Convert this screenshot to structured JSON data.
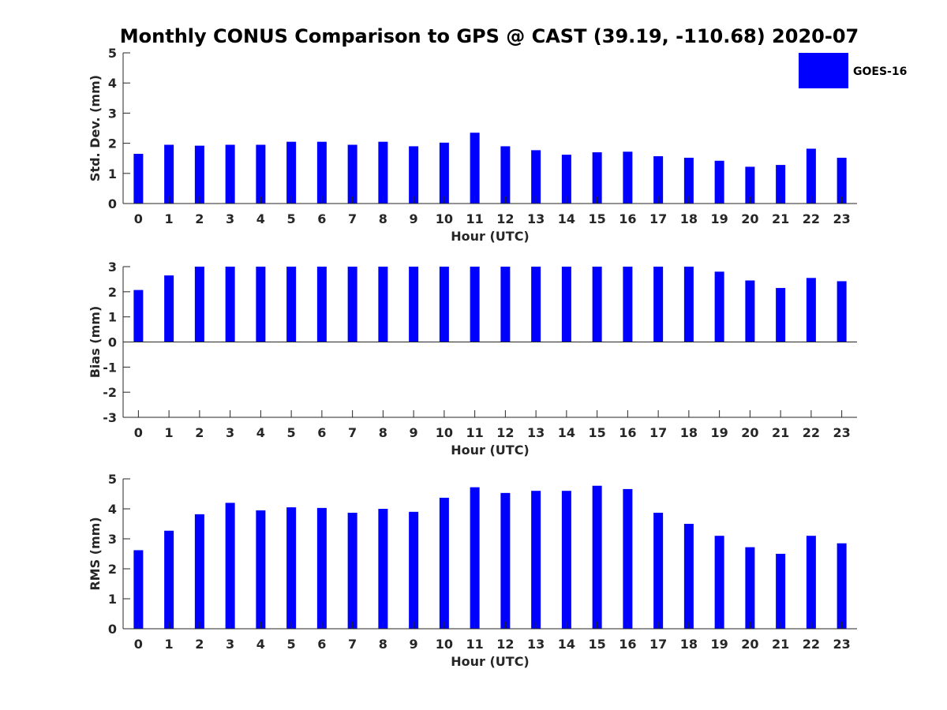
{
  "title": "Monthly CONUS Comparison to GPS @ CAST (39.19, -110.68) 2020-07",
  "legend": {
    "label": "GOES-16",
    "color": "#0000ff"
  },
  "chart_data": [
    {
      "type": "bar",
      "xlabel": "Hour (UTC)",
      "ylabel": "Std. Dev. (mm)",
      "ylim": [
        0,
        5
      ],
      "yticks": [
        0,
        1,
        2,
        3,
        4,
        5
      ],
      "categories": [
        "0",
        "1",
        "2",
        "3",
        "4",
        "5",
        "6",
        "7",
        "8",
        "9",
        "10",
        "11",
        "12",
        "13",
        "14",
        "15",
        "16",
        "17",
        "18",
        "19",
        "20",
        "21",
        "22",
        "23"
      ],
      "series": [
        {
          "name": "GOES-16",
          "color": "#0000ff",
          "values": [
            1.65,
            1.95,
            1.92,
            1.95,
            1.95,
            2.05,
            2.05,
            1.95,
            2.05,
            1.9,
            2.02,
            2.35,
            1.9,
            1.77,
            1.62,
            1.7,
            1.72,
            1.57,
            1.52,
            1.42,
            1.22,
            1.28,
            1.82,
            1.52
          ]
        }
      ]
    },
    {
      "type": "bar",
      "xlabel": "Hour (UTC)",
      "ylabel": "Bias (mm)",
      "ylim": [
        -3,
        3
      ],
      "yticks": [
        -3,
        -2,
        -1,
        0,
        1,
        2,
        3
      ],
      "categories": [
        "0",
        "1",
        "2",
        "3",
        "4",
        "5",
        "6",
        "7",
        "8",
        "9",
        "10",
        "11",
        "12",
        "13",
        "14",
        "15",
        "16",
        "17",
        "18",
        "19",
        "20",
        "21",
        "22",
        "23"
      ],
      "series": [
        {
          "name": "GOES-16",
          "color": "#0000ff",
          "values": [
            2.07,
            2.65,
            3.0,
            3.0,
            3.0,
            3.0,
            3.0,
            3.0,
            3.0,
            3.0,
            3.0,
            3.0,
            3.0,
            3.0,
            3.0,
            3.0,
            3.0,
            3.0,
            3.0,
            2.8,
            2.45,
            2.15,
            2.55,
            2.42
          ]
        }
      ]
    },
    {
      "type": "bar",
      "xlabel": "Hour (UTC)",
      "ylabel": "RMS (mm)",
      "ylim": [
        0,
        5
      ],
      "yticks": [
        0,
        1,
        2,
        3,
        4,
        5
      ],
      "categories": [
        "0",
        "1",
        "2",
        "3",
        "4",
        "5",
        "6",
        "7",
        "8",
        "9",
        "10",
        "11",
        "12",
        "13",
        "14",
        "15",
        "16",
        "17",
        "18",
        "19",
        "20",
        "21",
        "22",
        "23"
      ],
      "series": [
        {
          "name": "GOES-16",
          "color": "#0000ff",
          "values": [
            2.62,
            3.27,
            3.82,
            4.2,
            3.95,
            4.05,
            4.03,
            3.87,
            4.0,
            3.9,
            4.37,
            4.72,
            4.53,
            4.6,
            4.6,
            4.77,
            4.66,
            3.87,
            3.5,
            3.1,
            2.72,
            2.5,
            3.1,
            2.85
          ]
        }
      ]
    }
  ]
}
